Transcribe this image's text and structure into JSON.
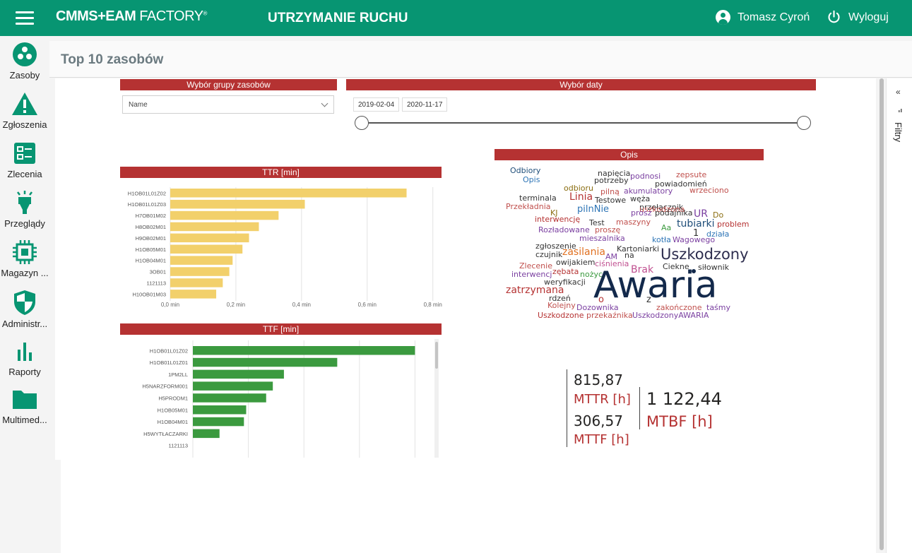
{
  "topbar": {
    "logo_main": "CMMS+EAM",
    "logo_factory": "FACTORY",
    "logo_reg": "®",
    "app_title": "UTRZYMANIE RUCHU",
    "user_name": "Tomasz Cyroń",
    "logout_label": "Wyloguj"
  },
  "sidebar": {
    "items": [
      {
        "label": "Zasoby",
        "icon": "assets-icon"
      },
      {
        "label": "Zgłoszenia",
        "icon": "warning-icon"
      },
      {
        "label": "Zlecenia",
        "icon": "work-orders-icon"
      },
      {
        "label": "Przeglądy",
        "icon": "inspection-icon"
      },
      {
        "label": "Magazyn ...",
        "icon": "chip-icon"
      },
      {
        "label": "Administr...",
        "icon": "shield-icon"
      },
      {
        "label": "Raporty",
        "icon": "bar-chart-icon"
      },
      {
        "label": "Multimed...",
        "icon": "folder-icon"
      }
    ]
  },
  "page": {
    "title": "Top 10 zasobów"
  },
  "filters_pane": {
    "label": "Filtry"
  },
  "filters": {
    "group_header": "Wybór grupy zasobów",
    "group_dropdown_value": "Name",
    "date_header": "Wybór daty",
    "date_from": "2019-02-04",
    "date_to": "2020-11-17"
  },
  "colors": {
    "accent": "#079572",
    "header_red": "#b53232",
    "ttr_bar": "#f2d06b",
    "ttf_bar": "#3b9a3f"
  },
  "chart_data": [
    {
      "type": "bar",
      "title": "TTR [min]",
      "orientation": "horizontal",
      "categories": [
        "H1OB01L01Z02",
        "H1OB01L01Z03",
        "H7OB01M02",
        "H8OB02M01",
        "H9OB02M01",
        "H1OB05M01",
        "H1OB04M01",
        "3OB01",
        "1121113",
        "H10OB01M03"
      ],
      "values": [
        0.72,
        0.41,
        0.33,
        0.27,
        0.24,
        0.22,
        0.19,
        0.18,
        0.16,
        0.14
      ],
      "xticks": [
        "0,0 min",
        "0,2 min",
        "0,4 min",
        "0,6 min",
        "0,8 min"
      ],
      "xlim": [
        0,
        0.82
      ]
    },
    {
      "type": "bar",
      "title": "TTF [min]",
      "orientation": "horizontal",
      "categories": [
        "H1OB01L01Z02",
        "H1OB01L01Z01",
        "1PM2LL",
        "H5NARZFORM001",
        "H5PRODM1",
        "H1OB05M01",
        "H1OB04M01",
        "H5WYTŁACZARKI",
        "1121113"
      ],
      "values": [
        100,
        65,
        41,
        36,
        33,
        24,
        23,
        12,
        0
      ],
      "xlim": [
        0,
        104
      ]
    }
  ],
  "wordcloud": {
    "title": "Opis",
    "words": [
      {
        "t": "Odbiory",
        "c": "#1f4e79",
        "s": 11
      },
      {
        "t": "Opis",
        "c": "#2e75b6",
        "s": 11
      },
      {
        "t": "napięcia",
        "c": "#333",
        "s": 11
      },
      {
        "t": "podnosi",
        "c": "#7a3fa0",
        "s": 11
      },
      {
        "t": "zepsute",
        "c": "#c0504d",
        "s": 11
      },
      {
        "t": "potrzeby",
        "c": "#333",
        "s": 11
      },
      {
        "t": "powiadomień",
        "c": "#333",
        "s": 11
      },
      {
        "t": "odbioru",
        "c": "#8a6d10",
        "s": 11
      },
      {
        "t": "pilną",
        "c": "#c0504d",
        "s": 11
      },
      {
        "t": "akumulatory",
        "c": "#7a3fa0",
        "s": 11
      },
      {
        "t": "wrzeciono",
        "c": "#c0504d",
        "s": 11
      },
      {
        "t": "terminala",
        "c": "#333",
        "s": 11
      },
      {
        "t": "Linia",
        "c": "#b53232",
        "s": 14
      },
      {
        "t": "Testowe",
        "c": "#333",
        "s": 11
      },
      {
        "t": "węża",
        "c": "#333",
        "s": 11
      },
      {
        "t": "przełącznik",
        "c": "#333",
        "s": 11
      },
      {
        "t": "Przekładnia",
        "c": "#c0504d",
        "s": 11
      },
      {
        "t": "pilnNie",
        "c": "#2e75b6",
        "s": 13
      },
      {
        "t": "uszkodzona",
        "c": "#c0504d",
        "s": 11
      },
      {
        "t": "KJ",
        "c": "#8a6d10",
        "s": 11
      },
      {
        "t": "prosz",
        "c": "#7a3fa0",
        "s": 11
      },
      {
        "t": "podajnika",
        "c": "#333",
        "s": 11
      },
      {
        "t": "UR",
        "c": "#7a3fa0",
        "s": 14
      },
      {
        "t": "Do",
        "c": "#8a6d10",
        "s": 11
      },
      {
        "t": "interwencję",
        "c": "#b53232",
        "s": 11
      },
      {
        "t": "Test",
        "c": "#333",
        "s": 11
      },
      {
        "t": "maszyny",
        "c": "#c0504d",
        "s": 11
      },
      {
        "t": "tubiarki",
        "c": "#1f4e79",
        "s": 14
      },
      {
        "t": "problem",
        "c": "#b53232",
        "s": 11
      },
      {
        "t": "Rozładowane",
        "c": "#7a3fa0",
        "s": 11
      },
      {
        "t": "proszę",
        "c": "#c0504d",
        "s": 11
      },
      {
        "t": "Aa",
        "c": "#3b9a3f",
        "s": 11
      },
      {
        "t": "1",
        "c": "#333",
        "s": 13
      },
      {
        "t": "działa",
        "c": "#2e75b6",
        "s": 11
      },
      {
        "t": "mieszalnika",
        "c": "#7a3fa0",
        "s": 11
      },
      {
        "t": "kotła",
        "c": "#2e75b6",
        "s": 11
      },
      {
        "t": "Wagowego",
        "c": "#7a3fa0",
        "s": 11
      },
      {
        "t": "zgłoszenie",
        "c": "#333",
        "s": 11
      },
      {
        "t": "Kartoniarki",
        "c": "#333",
        "s": 11
      },
      {
        "t": "czujnik",
        "c": "#333",
        "s": 11
      },
      {
        "t": "zasilania",
        "c": "#e07020",
        "s": 14
      },
      {
        "t": "na",
        "c": "#333",
        "s": 11
      },
      {
        "t": "Uszkodzony",
        "c": "#2d2d4e",
        "s": 21
      },
      {
        "t": "AM",
        "c": "#7a3fa0",
        "s": 11
      },
      {
        "t": "Zlecenie",
        "c": "#c0504d",
        "s": 11
      },
      {
        "t": "owijakiem",
        "c": "#333",
        "s": 11
      },
      {
        "t": "ciśnienia",
        "c": "#c05090",
        "s": 11
      },
      {
        "t": "Ciekne",
        "c": "#333",
        "s": 11
      },
      {
        "t": "siłownik",
        "c": "#333",
        "s": 11
      },
      {
        "t": "interwencj",
        "c": "#7a3fa0",
        "s": 11
      },
      {
        "t": "zębata",
        "c": "#b53232",
        "s": 11
      },
      {
        "t": "nożyc",
        "c": "#3b9a3f",
        "s": 11
      },
      {
        "t": "Brak",
        "c": "#c05090",
        "s": 14
      },
      {
        "t": "weryfikacji",
        "c": "#333",
        "s": 11
      },
      {
        "t": "Awaria",
        "c": "#13294b",
        "s": 52
      },
      {
        "t": "zatrzymana",
        "c": "#b53232",
        "s": 14
      },
      {
        "t": "rdzeń",
        "c": "#333",
        "s": 11
      },
      {
        "t": "o",
        "c": "#b53232",
        "s": 13
      },
      {
        "t": "z",
        "c": "#333",
        "s": 13
      },
      {
        "t": "Kolejny",
        "c": "#c0504d",
        "s": 11
      },
      {
        "t": "Dozownika",
        "c": "#7a3fa0",
        "s": 11
      },
      {
        "t": "zakończone",
        "c": "#c0504d",
        "s": 11
      },
      {
        "t": "taśmy",
        "c": "#7a3fa0",
        "s": 11
      },
      {
        "t": "Uszkodzone",
        "c": "#b53232",
        "s": 11
      },
      {
        "t": "przekaźnika",
        "c": "#c0504d",
        "s": 11
      },
      {
        "t": "UszkodzonyAWARIA",
        "c": "#7a3fa0",
        "s": 11
      }
    ]
  },
  "kpis": {
    "mttr_value": "815,87",
    "mttr_label": "MTTR [h]",
    "mttf_value": "306,57",
    "mttf_label": "MTTF [h]",
    "mtbf_value": "1 122,44",
    "mtbf_label": "MTBF [h]"
  }
}
